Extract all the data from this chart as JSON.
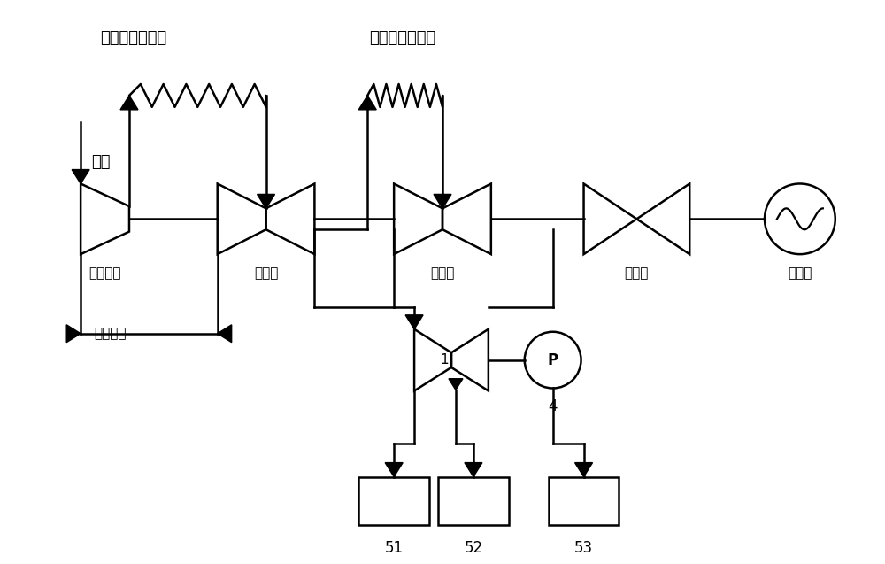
{
  "bg_color": "#ffffff",
  "line_color": "#000000",
  "line_width": 1.8,
  "labels": {
    "boiler_reheater1": "锅炉一级再热器",
    "boiler_reheater2": "锅炉二级再热器",
    "boiler": "锅炉",
    "uhp": "超高压缸",
    "hp": "高压缸",
    "mp": "中压缸",
    "lp": "低压缸",
    "generator": "发电机",
    "reheat": "回热系统",
    "turbine1": "1",
    "pressure": "P",
    "label4": "4",
    "box51": "51",
    "box52": "52",
    "box53": "53"
  }
}
